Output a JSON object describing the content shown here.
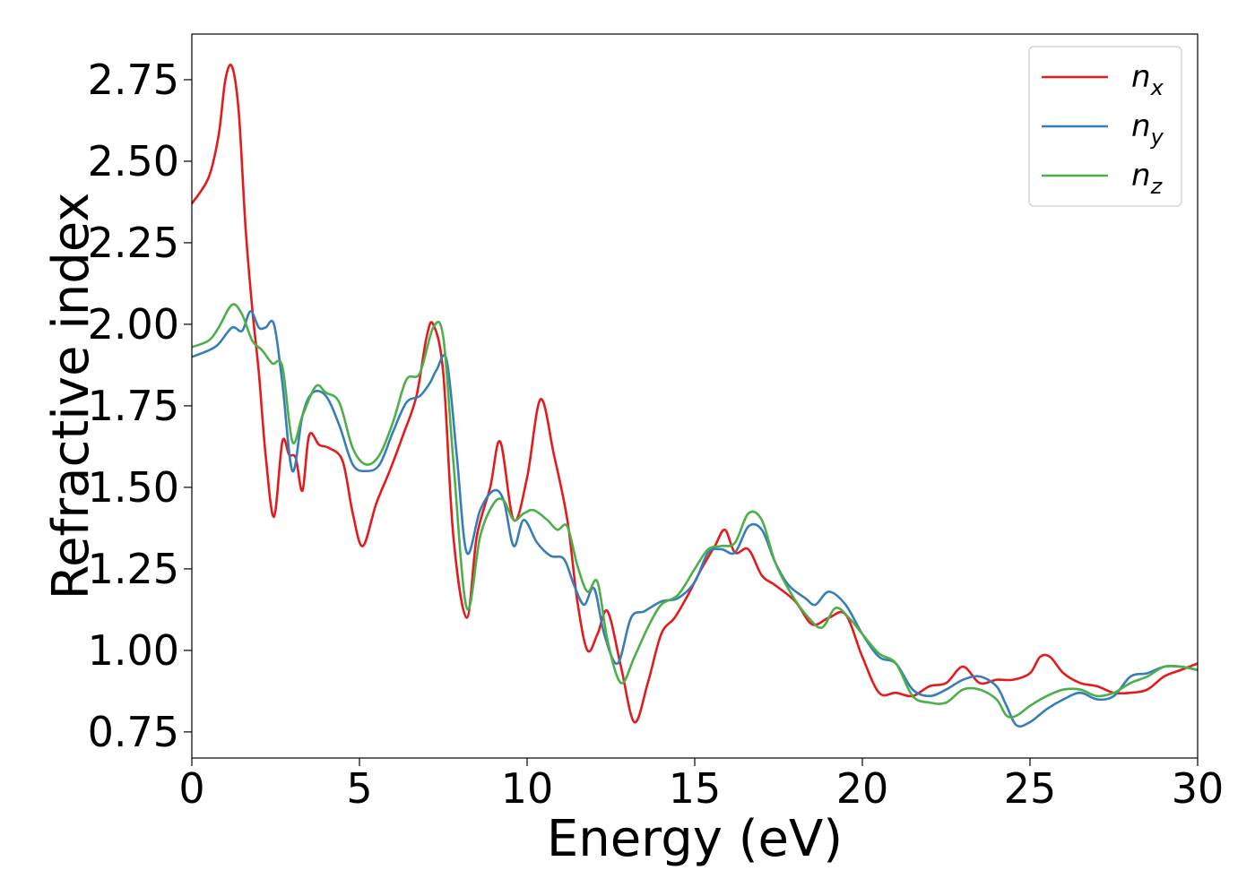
{
  "chart_data": {
    "type": "line",
    "title": "",
    "xlabel": "Energy (eV)",
    "ylabel": "Refractive index",
    "xlim": [
      0,
      30
    ],
    "ylim": [
      0.67,
      2.89
    ],
    "xticks": [
      0,
      5,
      10,
      15,
      20,
      25,
      30
    ],
    "xtick_labels": [
      "0",
      "5",
      "10",
      "15",
      "20",
      "25",
      "30"
    ],
    "yticks": [
      0.75,
      1.0,
      1.25,
      1.5,
      1.75,
      2.0,
      2.25,
      2.5,
      2.75
    ],
    "ytick_labels": [
      "0.75",
      "1.00",
      "1.25",
      "1.50",
      "1.75",
      "2.00",
      "2.25",
      "2.50",
      "2.75"
    ],
    "grid": false,
    "legend_position": "top-right",
    "series": [
      {
        "name": "n_x",
        "label_base": "n",
        "label_sub": "x",
        "color": "#e41a1c",
        "x": [
          0,
          0.5,
          0.8,
          1.0,
          1.2,
          1.4,
          1.6,
          1.8,
          2.0,
          2.2,
          2.45,
          2.7,
          2.9,
          3.1,
          3.3,
          3.5,
          3.8,
          4.1,
          4.5,
          4.8,
          5.1,
          5.5,
          5.9,
          6.3,
          6.7,
          7.0,
          7.2,
          7.5,
          7.8,
          8.2,
          8.5,
          8.9,
          9.2,
          9.6,
          10.0,
          10.4,
          10.8,
          11.2,
          11.5,
          11.8,
          12.1,
          12.4,
          12.8,
          13.2,
          13.6,
          14.0,
          14.4,
          14.8,
          15.2,
          15.6,
          15.9,
          16.2,
          16.6,
          17.0,
          17.4,
          18.0,
          18.5,
          19.0,
          19.5,
          20.0,
          20.5,
          21.0,
          21.5,
          22.0,
          22.5,
          23.0,
          23.5,
          24.0,
          24.5,
          25.0,
          25.3,
          25.6,
          26.0,
          26.5,
          27.0,
          27.5,
          28.0,
          28.5,
          29.0,
          29.5,
          30.0
        ],
        "y": [
          2.37,
          2.45,
          2.58,
          2.75,
          2.79,
          2.65,
          2.3,
          2.05,
          1.85,
          1.6,
          1.41,
          1.64,
          1.6,
          1.59,
          1.49,
          1.66,
          1.63,
          1.62,
          1.58,
          1.42,
          1.32,
          1.45,
          1.55,
          1.66,
          1.78,
          1.96,
          2.0,
          1.85,
          1.35,
          1.1,
          1.35,
          1.5,
          1.64,
          1.4,
          1.53,
          1.77,
          1.6,
          1.4,
          1.15,
          1.0,
          1.05,
          1.12,
          0.95,
          0.78,
          0.9,
          1.05,
          1.1,
          1.17,
          1.25,
          1.32,
          1.37,
          1.3,
          1.31,
          1.23,
          1.2,
          1.15,
          1.08,
          1.1,
          1.11,
          0.98,
          0.87,
          0.87,
          0.86,
          0.89,
          0.9,
          0.95,
          0.9,
          0.91,
          0.91,
          0.93,
          0.98,
          0.98,
          0.93,
          0.9,
          0.89,
          0.87,
          0.87,
          0.88,
          0.92,
          0.94,
          0.96
        ]
      },
      {
        "name": "n_y",
        "label_base": "n",
        "label_sub": "y",
        "color": "#377eb8",
        "x": [
          0,
          0.5,
          0.8,
          1.2,
          1.5,
          1.75,
          2.0,
          2.2,
          2.45,
          2.7,
          3.0,
          3.3,
          3.6,
          4.0,
          4.4,
          4.8,
          5.2,
          5.6,
          6.0,
          6.4,
          6.8,
          7.1,
          7.3,
          7.6,
          7.9,
          8.2,
          8.6,
          9.0,
          9.3,
          9.6,
          9.9,
          10.3,
          10.7,
          11.1,
          11.4,
          11.7,
          12.0,
          12.3,
          12.7,
          13.1,
          13.5,
          14.0,
          14.5,
          15.0,
          15.4,
          15.8,
          16.2,
          16.6,
          17.0,
          17.4,
          17.8,
          18.3,
          18.6,
          19.0,
          19.5,
          20.0,
          20.5,
          21.0,
          21.5,
          22.0,
          22.5,
          23.0,
          23.5,
          24.0,
          24.3,
          24.6,
          25.0,
          25.5,
          26.0,
          26.5,
          27.0,
          27.5,
          28.0,
          28.5,
          29.0,
          29.5,
          30.0
        ],
        "y": [
          1.9,
          1.92,
          1.94,
          1.99,
          1.98,
          2.04,
          1.99,
          1.99,
          2.0,
          1.82,
          1.55,
          1.72,
          1.79,
          1.78,
          1.69,
          1.57,
          1.55,
          1.57,
          1.67,
          1.76,
          1.78,
          1.82,
          1.86,
          1.89,
          1.6,
          1.3,
          1.43,
          1.49,
          1.46,
          1.32,
          1.4,
          1.33,
          1.29,
          1.28,
          1.2,
          1.14,
          1.19,
          1.05,
          0.96,
          1.1,
          1.12,
          1.15,
          1.16,
          1.21,
          1.3,
          1.31,
          1.3,
          1.38,
          1.37,
          1.27,
          1.2,
          1.16,
          1.14,
          1.18,
          1.14,
          1.05,
          0.98,
          0.96,
          0.88,
          0.86,
          0.88,
          0.91,
          0.92,
          0.89,
          0.83,
          0.77,
          0.78,
          0.82,
          0.85,
          0.87,
          0.85,
          0.86,
          0.92,
          0.93,
          0.95,
          0.95,
          0.94
        ]
      },
      {
        "name": "n_z",
        "label_base": "n",
        "label_sub": "z",
        "color": "#4daf4a",
        "x": [
          0,
          0.5,
          0.8,
          1.2,
          1.5,
          1.8,
          2.1,
          2.4,
          2.7,
          3.0,
          3.3,
          3.7,
          4.0,
          4.4,
          4.8,
          5.2,
          5.6,
          6.0,
          6.4,
          6.8,
          7.2,
          7.5,
          7.8,
          8.2,
          8.6,
          9.0,
          9.3,
          9.6,
          9.9,
          10.2,
          10.6,
          10.9,
          11.2,
          11.5,
          11.8,
          12.1,
          12.4,
          12.8,
          13.2,
          13.6,
          14.0,
          14.5,
          15.0,
          15.4,
          15.8,
          16.2,
          16.6,
          17.0,
          17.4,
          17.9,
          18.4,
          18.8,
          19.2,
          19.6,
          20.0,
          20.5,
          21.0,
          21.5,
          22.0,
          22.5,
          23.0,
          23.5,
          24.0,
          24.3,
          24.6,
          25.0,
          25.5,
          26.0,
          26.5,
          27.0,
          27.5,
          28.0,
          28.5,
          29.0,
          29.5,
          30.0
        ],
        "y": [
          1.93,
          1.95,
          1.99,
          2.06,
          2.03,
          1.95,
          1.92,
          1.88,
          1.87,
          1.64,
          1.72,
          1.81,
          1.79,
          1.76,
          1.62,
          1.57,
          1.6,
          1.7,
          1.83,
          1.85,
          1.99,
          1.96,
          1.58,
          1.13,
          1.35,
          1.45,
          1.46,
          1.4,
          1.42,
          1.43,
          1.4,
          1.37,
          1.38,
          1.26,
          1.18,
          1.21,
          1.03,
          0.9,
          0.98,
          1.07,
          1.14,
          1.17,
          1.25,
          1.31,
          1.32,
          1.33,
          1.42,
          1.4,
          1.27,
          1.17,
          1.1,
          1.07,
          1.13,
          1.1,
          1.05,
          0.99,
          0.96,
          0.86,
          0.84,
          0.84,
          0.88,
          0.88,
          0.85,
          0.8,
          0.8,
          0.83,
          0.86,
          0.88,
          0.88,
          0.86,
          0.87,
          0.9,
          0.92,
          0.95,
          0.95,
          0.94
        ]
      }
    ]
  }
}
